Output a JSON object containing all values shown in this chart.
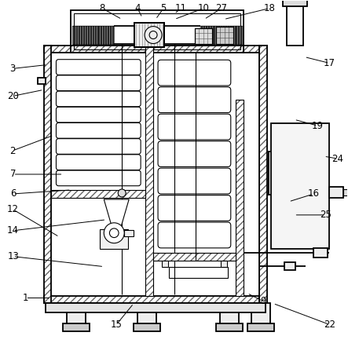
{
  "bg_color": "#ffffff",
  "fig_width": 4.43,
  "fig_height": 4.42,
  "dpi": 100
}
